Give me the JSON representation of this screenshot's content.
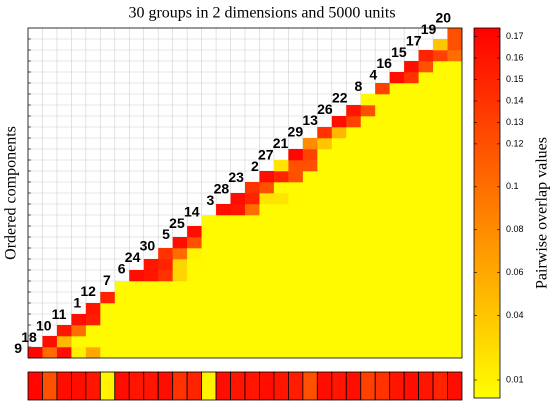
{
  "chart_data": {
    "type": "heatmap",
    "title": "30 groups in 2 dimensions and 5000 units",
    "ylabel": "Ordered components",
    "colorbar_label": "Pairwise overlap values",
    "labels": [
      "9",
      "18",
      "10",
      "11",
      "1",
      "12",
      "7",
      "6",
      "24",
      "30",
      "5",
      "25",
      "14",
      "3",
      "28",
      "23",
      "2",
      "27",
      "21",
      "29",
      "13",
      "26",
      "22",
      "8",
      "4",
      "16",
      "15",
      "17",
      "19",
      "20"
    ],
    "rows": [
      [
        0.17,
        0.1,
        0.165,
        0.012,
        0.06,
        0.005,
        0.005,
        0.005,
        0.005,
        0.005,
        0.005,
        0.005,
        0.005,
        0.005,
        0.005,
        0.005,
        0.005,
        0.005,
        0.005,
        0.005,
        0.005,
        0.005,
        0.005,
        0.005,
        0.005,
        0.005,
        0.005,
        0.005,
        0.005,
        0.005
      ],
      [
        0.165,
        0.05,
        0.005,
        0.005,
        0.005,
        0.005,
        0.005,
        0.005,
        0.005,
        0.005,
        0.005,
        0.005,
        0.005,
        0.005,
        0.005,
        0.005,
        0.005,
        0.005,
        0.005,
        0.005,
        0.005,
        0.005,
        0.005,
        0.005,
        0.005,
        0.005,
        0.005,
        0.005,
        0.005
      ],
      [
        0.16,
        0.1,
        0.005,
        0.005,
        0.005,
        0.005,
        0.005,
        0.005,
        0.005,
        0.005,
        0.005,
        0.005,
        0.005,
        0.005,
        0.005,
        0.005,
        0.005,
        0.005,
        0.005,
        0.005,
        0.005,
        0.005,
        0.005,
        0.005,
        0.005,
        0.005,
        0.005,
        0.005
      ],
      [
        0.165,
        0.155,
        0.005,
        0.005,
        0.005,
        0.005,
        0.005,
        0.005,
        0.005,
        0.005,
        0.005,
        0.005,
        0.005,
        0.005,
        0.005,
        0.005,
        0.005,
        0.005,
        0.005,
        0.005,
        0.005,
        0.005,
        0.005,
        0.005,
        0.005,
        0.005,
        0.005
      ],
      [
        0.16,
        0.005,
        0.005,
        0.005,
        0.005,
        0.005,
        0.005,
        0.005,
        0.005,
        0.005,
        0.005,
        0.005,
        0.005,
        0.005,
        0.005,
        0.005,
        0.005,
        0.005,
        0.005,
        0.005,
        0.005,
        0.005,
        0.005,
        0.005,
        0.005,
        0.005
      ],
      [
        0.15,
        0.005,
        0.005,
        0.005,
        0.005,
        0.005,
        0.005,
        0.005,
        0.005,
        0.005,
        0.005,
        0.005,
        0.005,
        0.005,
        0.005,
        0.005,
        0.005,
        0.005,
        0.005,
        0.005,
        0.005,
        0.005,
        0.005,
        0.005,
        0.005
      ],
      [
        0.005,
        0.005,
        0.005,
        0.005,
        0.005,
        0.005,
        0.005,
        0.005,
        0.005,
        0.005,
        0.005,
        0.005,
        0.005,
        0.005,
        0.005,
        0.005,
        0.005,
        0.005,
        0.005,
        0.005,
        0.005,
        0.005,
        0.005,
        0.005
      ],
      [
        0.165,
        0.16,
        0.14,
        0.03,
        0.005,
        0.005,
        0.005,
        0.005,
        0.005,
        0.005,
        0.005,
        0.005,
        0.005,
        0.005,
        0.005,
        0.005,
        0.005,
        0.005,
        0.005,
        0.005,
        0.005,
        0.005,
        0.005
      ],
      [
        0.16,
        0.15,
        0.03,
        0.005,
        0.005,
        0.005,
        0.005,
        0.005,
        0.005,
        0.005,
        0.005,
        0.005,
        0.005,
        0.005,
        0.005,
        0.005,
        0.005,
        0.005,
        0.005,
        0.005,
        0.005,
        0.005
      ],
      [
        0.14,
        0.1,
        0.01,
        0.005,
        0.005,
        0.005,
        0.005,
        0.005,
        0.005,
        0.005,
        0.005,
        0.005,
        0.005,
        0.005,
        0.005,
        0.005,
        0.005,
        0.005,
        0.005,
        0.005,
        0.005
      ],
      [
        0.165,
        0.12,
        0.005,
        0.005,
        0.005,
        0.005,
        0.005,
        0.005,
        0.005,
        0.005,
        0.005,
        0.005,
        0.005,
        0.005,
        0.005,
        0.005,
        0.005,
        0.005,
        0.005,
        0.005
      ],
      [
        0.165,
        0.005,
        0.005,
        0.005,
        0.005,
        0.005,
        0.005,
        0.005,
        0.005,
        0.005,
        0.005,
        0.005,
        0.005,
        0.005,
        0.005,
        0.005,
        0.005,
        0.005,
        0.005
      ],
      [
        0.005,
        0.005,
        0.005,
        0.005,
        0.005,
        0.005,
        0.005,
        0.005,
        0.005,
        0.005,
        0.005,
        0.005,
        0.005,
        0.005,
        0.005,
        0.005,
        0.005,
        0.005
      ],
      [
        0.165,
        0.16,
        0.1,
        0.005,
        0.005,
        0.005,
        0.005,
        0.005,
        0.005,
        0.005,
        0.005,
        0.005,
        0.005,
        0.005,
        0.005,
        0.005,
        0.005
      ],
      [
        0.165,
        0.15,
        0.02,
        0.02,
        0.005,
        0.005,
        0.005,
        0.005,
        0.005,
        0.005,
        0.005,
        0.005,
        0.005,
        0.005,
        0.005,
        0.005
      ],
      [
        0.14,
        0.12,
        0.005,
        0.005,
        0.005,
        0.005,
        0.005,
        0.005,
        0.005,
        0.005,
        0.005,
        0.005,
        0.005,
        0.005,
        0.005
      ],
      [
        0.165,
        0.15,
        0.12,
        0.005,
        0.005,
        0.005,
        0.005,
        0.005,
        0.005,
        0.005,
        0.005,
        0.005,
        0.005,
        0.005
      ],
      [
        0.02,
        0.12,
        0.12,
        0.005,
        0.005,
        0.005,
        0.005,
        0.005,
        0.005,
        0.005,
        0.005,
        0.005,
        0.005
      ],
      [
        0.17,
        0.13,
        0.005,
        0.005,
        0.005,
        0.005,
        0.005,
        0.005,
        0.005,
        0.005,
        0.005,
        0.005
      ],
      [
        0.08,
        0.04,
        0.005,
        0.005,
        0.005,
        0.005,
        0.005,
        0.005,
        0.005,
        0.005,
        0.005
      ],
      [
        0.14,
        0.05,
        0.005,
        0.005,
        0.005,
        0.005,
        0.005,
        0.005,
        0.005,
        0.005
      ],
      [
        0.165,
        0.13,
        0.005,
        0.005,
        0.005,
        0.005,
        0.005,
        0.005,
        0.005
      ],
      [
        0.16,
        0.12,
        0.005,
        0.005,
        0.005,
        0.005,
        0.005,
        0.005
      ],
      [
        0.005,
        0.005,
        0.005,
        0.005,
        0.005,
        0.005,
        0.005
      ],
      [
        0.13,
        0.005,
        0.005,
        0.005,
        0.005,
        0.005
      ],
      [
        0.165,
        0.14,
        0.005,
        0.005,
        0.005
      ],
      [
        0.165,
        0.12,
        0.005,
        0.005
      ],
      [
        0.15,
        0.13,
        0.1
      ],
      [
        0.04,
        0.12
      ],
      [
        0.12
      ]
    ],
    "strip": [
      0.17,
      0.12,
      0.165,
      0.165,
      0.16,
      0.01,
      0.165,
      0.16,
      0.16,
      0.165,
      0.14,
      0.15,
      0.01,
      0.165,
      0.16,
      0.16,
      0.165,
      0.16,
      0.155,
      0.12,
      0.165,
      0.16,
      0.165,
      0.13,
      0.14,
      0.16,
      0.165,
      0.16,
      0.15,
      0.165
    ],
    "clim": [
      0.0016,
      0.174
    ],
    "cticks": [
      0.01,
      0.04,
      0.06,
      0.08,
      0.1,
      0.12,
      0.13,
      0.14,
      0.15,
      0.16,
      0.17
    ],
    "colors": {
      "low": "#ffff00",
      "high": "#ff0000"
    },
    "grid": true
  }
}
